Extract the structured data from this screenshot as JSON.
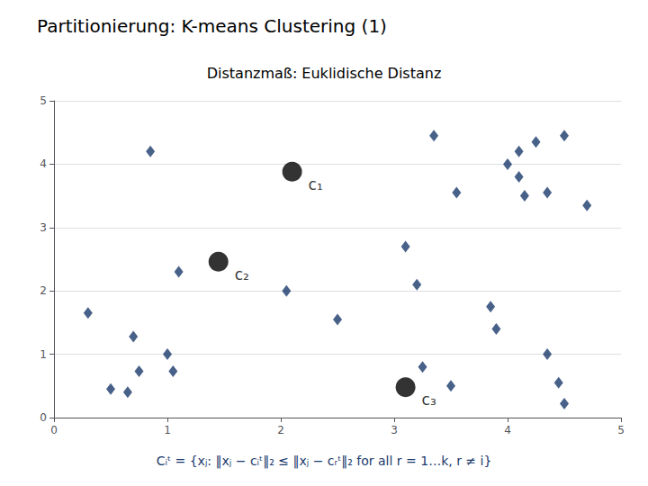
{
  "chart_data": {
    "type": "scatter",
    "title": "Partitionierung: K-means Clustering (1)",
    "subtitle": "Distanzmaß: Euklidische Distanz",
    "annotation": "Cᵢᵗ = {xⱼ: ‖xⱼ − cᵢᵗ‖₂ ≤ ‖xⱼ − cᵣᵗ‖₂ for all r = 1…k, r ≠ i}",
    "xlim": [
      0,
      5
    ],
    "ylim": [
      0,
      5
    ],
    "xticks": [
      0,
      1,
      2,
      3,
      4,
      5
    ],
    "yticks": [
      0,
      1,
      2,
      3,
      4,
      5
    ],
    "grid": "y",
    "series": [
      {
        "type": "scatter",
        "marker": "diamond",
        "color": "#1a3a6b",
        "x": [
          0.3,
          0.5,
          0.65,
          0.7,
          0.75,
          0.85,
          1.0,
          1.05,
          1.1,
          2.05,
          2.5,
          3.1,
          3.2,
          3.25,
          3.35,
          3.5,
          3.85,
          3.9,
          4.0,
          4.1,
          4.1,
          4.25,
          4.35,
          4.45,
          4.5,
          4.5,
          4.7,
          4.35,
          3.55,
          4.15
        ],
        "values": [
          1.65,
          0.45,
          0.4,
          1.28,
          0.73,
          4.2,
          1.0,
          0.73,
          2.3,
          2.0,
          1.55,
          2.7,
          2.1,
          0.8,
          4.45,
          0.5,
          1.75,
          1.4,
          4.0,
          4.2,
          3.8,
          4.35,
          1.0,
          0.55,
          0.22,
          4.45,
          3.35,
          3.55,
          3.55,
          3.5
        ]
      },
      {
        "type": "scatter",
        "marker": "circle",
        "color": "#000000",
        "x": [
          2.1,
          1.45,
          3.1
        ],
        "values": [
          3.88,
          2.46,
          0.48
        ],
        "labels": [
          "c₁",
          "c₂",
          "c₃"
        ]
      }
    ]
  }
}
